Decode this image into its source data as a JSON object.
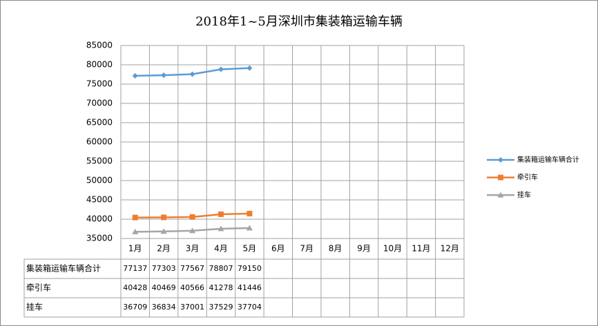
{
  "chart_data": {
    "type": "line",
    "title": "2018年1~5月深圳市集装箱运输车辆",
    "categories": [
      "1月",
      "2月",
      "3月",
      "4月",
      "5月",
      "6月",
      "7月",
      "8月",
      "9月",
      "10月",
      "11月",
      "12月"
    ],
    "series": [
      {
        "name": "集装箱运输车辆合计",
        "color": "#5b9bd5",
        "marker": "diamond",
        "values": [
          77137,
          77303,
          77567,
          78807,
          79150,
          null,
          null,
          null,
          null,
          null,
          null,
          null
        ]
      },
      {
        "name": "牵引车",
        "color": "#ed7d31",
        "marker": "square",
        "values": [
          40428,
          40469,
          40566,
          41278,
          41446,
          null,
          null,
          null,
          null,
          null,
          null,
          null
        ]
      },
      {
        "name": "挂车",
        "color": "#a5a5a5",
        "marker": "triangle",
        "values": [
          36709,
          36834,
          37001,
          37529,
          37704,
          null,
          null,
          null,
          null,
          null,
          null,
          null
        ]
      }
    ],
    "ylim": [
      35000,
      85000
    ],
    "yticks": [
      35000,
      40000,
      45000,
      50000,
      55000,
      60000,
      65000,
      70000,
      75000,
      80000,
      85000
    ],
    "grid": true,
    "legend": "right",
    "data_table": true
  }
}
